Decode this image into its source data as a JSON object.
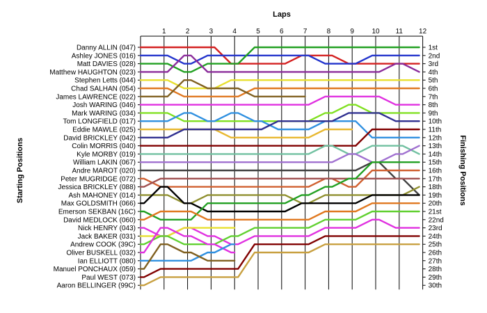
{
  "chart_data": {
    "type": "line",
    "title": "",
    "xlabel": "Laps",
    "ylabel_left": "Starting Positions",
    "ylabel_right": "Finishing Positions",
    "laps": [
      1,
      2,
      3,
      4,
      5,
      6,
      7,
      8,
      9,
      10,
      11,
      12
    ],
    "finishing_labels": [
      "1st",
      "2nd",
      "3rd",
      "4th",
      "5th",
      "6th",
      "7th",
      "8th",
      "9th",
      "10th",
      "11th",
      "12th",
      "13th",
      "14th",
      "15th",
      "16th",
      "17th",
      "18th",
      "19th",
      "20th",
      "21st",
      "22nd",
      "23rd",
      "24th",
      "25th",
      "26th",
      "27th",
      "28th",
      "29th",
      "30th"
    ],
    "series": [
      {
        "name": "Danny ALLIN (047)",
        "color": "#d42020",
        "positions": [
          1,
          1,
          1,
          1,
          3,
          3,
          3,
          2,
          2,
          3,
          3,
          3,
          3
        ]
      },
      {
        "name": "Ashley JONES (016)",
        "color": "#2233cc",
        "positions": [
          2,
          2,
          3,
          2,
          2,
          2,
          2,
          2,
          3,
          3,
          2,
          2,
          2
        ]
      },
      {
        "name": "Matt DAVIES (028)",
        "color": "#22a022",
        "positions": [
          3,
          3,
          4,
          3,
          3,
          1,
          1,
          1,
          1,
          1,
          1,
          1,
          1
        ]
      },
      {
        "name": "Matthew HAUGHTON (023)",
        "color": "#8a2b9a",
        "positions": [
          4,
          4,
          2,
          4,
          4,
          4,
          4,
          4,
          4,
          4,
          4,
          3,
          4
        ]
      },
      {
        "name": "Stephen Letts (044)",
        "color": "#e8e030",
        "positions": [
          5,
          5,
          6,
          6,
          5,
          5,
          5,
          5,
          5,
          5,
          5,
          5,
          5
        ]
      },
      {
        "name": "Chad SALHAN (054)",
        "color": "#e07820",
        "positions": [
          6,
          6,
          7,
          7,
          7,
          6,
          6,
          6,
          6,
          6,
          6,
          6,
          6
        ]
      },
      {
        "name": "James LAWRENCE (022)",
        "color": "#806020",
        "positions": [
          7,
          7,
          5,
          6,
          6,
          7,
          7,
          7,
          null,
          null,
          null,
          null,
          null
        ]
      },
      {
        "name": "Josh WARING (046)",
        "color": "#e030e0",
        "positions": [
          8,
          8,
          8,
          8,
          8,
          8,
          8,
          8,
          7,
          7,
          7,
          8,
          8
        ]
      },
      {
        "name": "Mark WARING (034)",
        "color": "#80e020",
        "positions": [
          9,
          9,
          10,
          10,
          10,
          10,
          10,
          10,
          9,
          8,
          9,
          9,
          9
        ]
      },
      {
        "name": "Tom LONGFIELD (017)",
        "color": "#3090e0",
        "positions": [
          10,
          10,
          9,
          10,
          9,
          10,
          11,
          11,
          10,
          10,
          12,
          12,
          12
        ]
      },
      {
        "name": "Eddie MAWLE (025)",
        "color": "#e8b830",
        "positions": [
          11,
          11,
          11,
          11,
          12,
          12,
          12,
          12,
          11,
          11,
          null,
          null,
          null
        ]
      },
      {
        "name": "David BRICKLEY (042)",
        "color": "#303090",
        "positions": [
          12,
          12,
          11,
          11,
          11,
          11,
          10,
          10,
          10,
          9,
          9,
          10,
          10
        ]
      },
      {
        "name": "Colin MORRIS (040)",
        "color": "#800000",
        "positions": [
          13,
          13,
          13,
          13,
          13,
          13,
          13,
          13,
          13,
          13,
          11,
          11,
          11
        ]
      },
      {
        "name": "Kyle MORBY (019)",
        "color": "#70c0a0",
        "positions": [
          14,
          14,
          14,
          14,
          14,
          14,
          14,
          14,
          13,
          14,
          13,
          13,
          14
        ]
      },
      {
        "name": "William LAKIN (067)",
        "color": "#a070d0",
        "positions": [
          15,
          15,
          15,
          15,
          15,
          15,
          15,
          15,
          15,
          14,
          15,
          14,
          13
        ]
      },
      {
        "name": "Andre MAROT (020)",
        "color": "#404040",
        "positions": [
          16,
          16,
          16,
          16,
          16,
          16,
          16,
          16,
          16,
          16,
          15,
          17,
          19
        ]
      },
      {
        "name": "Peter MUGRIDGE (072)",
        "color": "#d06030",
        "positions": [
          17,
          18,
          18,
          18,
          18,
          18,
          18,
          18,
          17,
          18,
          16,
          16,
          16
        ]
      },
      {
        "name": "Jessica BRICKLEY (088)",
        "color": "#a05050",
        "positions": [
          18,
          17,
          17,
          17,
          17,
          17,
          17,
          17,
          17,
          17,
          17,
          17,
          17
        ]
      },
      {
        "name": "Ash MAHONEY (014)",
        "color": "#909030",
        "positions": [
          19,
          19,
          20,
          19,
          19,
          19,
          19,
          20,
          19,
          19,
          19,
          19,
          18
        ]
      },
      {
        "name": "Max GOLDSMITH (066)",
        "color": "#000000",
        "positions": [
          20,
          18,
          20,
          21,
          21,
          21,
          21,
          20,
          20,
          20,
          19,
          19,
          19
        ]
      },
      {
        "name": "Emerson SEKBAN (16C)",
        "color": "#22a022",
        "positions": [
          21,
          22,
          22,
          20,
          20,
          20,
          20,
          19,
          18,
          17,
          15,
          15,
          15
        ]
      },
      {
        "name": "David MEDLOCK (060)",
        "color": "#e07820",
        "positions": [
          22,
          21,
          21,
          22,
          22,
          22,
          22,
          22,
          21,
          21,
          20,
          20,
          20
        ]
      },
      {
        "name": "Nick HENRY (043)",
        "color": "#e030e0",
        "positions": [
          23,
          24,
          23,
          24,
          25,
          24,
          24,
          24,
          23,
          23,
          22,
          23,
          23
        ]
      },
      {
        "name": "Jack BAKER (031)",
        "color": "#e8e030",
        "positions": [
          24,
          24,
          23,
          23,
          23,
          null,
          null,
          null,
          null,
          null,
          null,
          null,
          null
        ]
      },
      {
        "name": "Andrew COOK (39C)",
        "color": "#60d030",
        "positions": [
          25,
          24,
          25,
          25,
          24,
          23,
          23,
          23,
          22,
          22,
          21,
          21,
          21
        ]
      },
      {
        "name": "Oliver BUSKELL (032)",
        "color": "#e030e0",
        "positions": [
          26,
          23,
          24,
          25,
          26,
          null,
          null,
          null,
          null,
          null,
          null,
          null,
          null
        ]
      },
      {
        "name": "Ian ELLIOTT (080)",
        "color": "#3090e0",
        "positions": [
          27,
          27,
          27,
          26,
          25,
          null,
          null,
          null,
          null,
          null,
          null,
          null,
          null
        ]
      },
      {
        "name": "Manuel PONCHAUX (059)",
        "color": "#806020",
        "positions": [
          28,
          25,
          26,
          27,
          27,
          null,
          null,
          null,
          null,
          null,
          null,
          null,
          null
        ]
      },
      {
        "name": "Paul WEST (073)",
        "color": "#800000",
        "positions": [
          29,
          28,
          28,
          28,
          28,
          25,
          25,
          25,
          24,
          24,
          24,
          24,
          24
        ]
      },
      {
        "name": "Aaron BELLINGER (99C)",
        "color": "#c8a040",
        "positions": [
          30,
          29,
          29,
          29,
          29,
          26,
          26,
          26,
          25,
          25,
          25,
          25,
          25
        ]
      }
    ]
  }
}
